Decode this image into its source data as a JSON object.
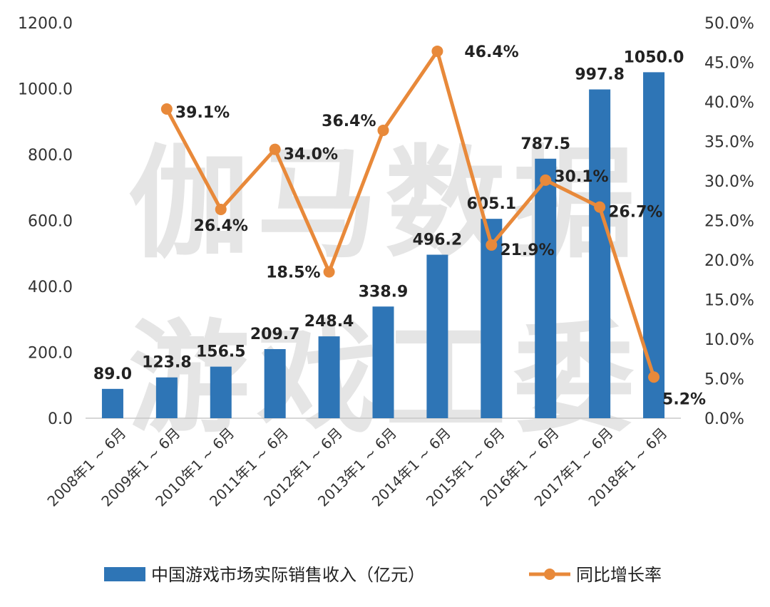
{
  "chart_data": {
    "type": "bar",
    "categories": [
      "2008年1 ~ 6月",
      "2009年1 ~ 6月",
      "2010年1 ~ 6月",
      "2011年1 ~ 6月",
      "2012年1 ~ 6月",
      "2013年1 ~ 6月",
      "2014年1 ~ 6月",
      "2015年1 ~ 6月",
      "2016年1 ~ 6月",
      "2017年1 ~ 6月",
      "2018年1 ~ 6月"
    ],
    "series": [
      {
        "name": "中国游戏市场实际销售收入（亿元）",
        "type": "bar",
        "axis": "left",
        "color": "#2e75b6",
        "values": [
          89.0,
          123.8,
          156.5,
          209.7,
          248.4,
          338.9,
          496.2,
          605.1,
          787.5,
          997.8,
          1050.0
        ],
        "labels": [
          "89.0",
          "123.8",
          "156.5",
          "209.7",
          "248.4",
          "338.9",
          "496.2",
          "605.1",
          "787.5",
          "997.8",
          "1050.0"
        ]
      },
      {
        "name": "同比增长率",
        "type": "line",
        "axis": "right",
        "color": "#e8893a",
        "values": [
          null,
          39.1,
          26.4,
          34.0,
          18.5,
          36.4,
          46.4,
          21.9,
          30.1,
          26.7,
          5.2
        ],
        "labels": [
          "",
          "39.1%",
          "26.4%",
          "34.0%",
          "18.5%",
          "36.4%",
          "46.4%",
          "21.9%",
          "30.1%",
          "26.7%",
          "5.2%"
        ]
      }
    ],
    "y_left": {
      "range": [
        0,
        1200
      ],
      "ticks": [
        "0.0",
        "200.0",
        "400.0",
        "600.0",
        "800.0",
        "1000.0",
        "1200.0"
      ]
    },
    "y_right": {
      "range": [
        0,
        50
      ],
      "ticks": [
        "0.0%",
        "5.0%",
        "10.0%",
        "15.0%",
        "20.0%",
        "25.0%",
        "30.0%",
        "35.0%",
        "40.0%",
        "45.0%",
        "50.0%"
      ]
    },
    "watermark": [
      "伽马数据",
      "游戏工委"
    ],
    "legend_position": "bottom",
    "grid": false
  }
}
